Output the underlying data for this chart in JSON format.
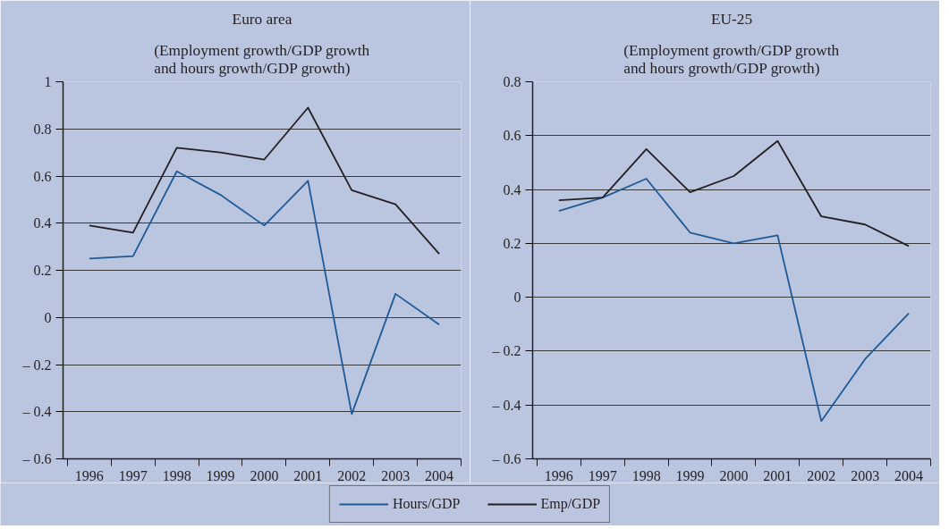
{
  "chart_data": [
    {
      "type": "line",
      "title": "Euro area",
      "subtitle": "(Employment growth/GDP growth\nand hours growth/GDP growth)",
      "categories": [
        "1996",
        "1997",
        "1998",
        "1999",
        "2000",
        "2001",
        "2002",
        "2003",
        "2004"
      ],
      "ylim": [
        -0.6,
        1
      ],
      "yticks": [
        {
          "value": -0.6,
          "label": "– 0.6"
        },
        {
          "value": -0.4,
          "label": "– 0.4"
        },
        {
          "value": -0.2,
          "label": "– 0.2"
        },
        0,
        0.2,
        0.4,
        0.6,
        0.8,
        1
      ],
      "grid": "y",
      "legend": "bottom",
      "series": [
        {
          "name": "Hours/GDP",
          "color": "#1f5a96",
          "values": [
            0.25,
            0.26,
            0.62,
            0.52,
            0.39,
            0.58,
            -0.41,
            0.1,
            -0.03
          ]
        },
        {
          "name": "Emp/GDP",
          "color": "#231f20",
          "values": [
            0.39,
            0.36,
            0.72,
            0.7,
            0.67,
            0.89,
            0.54,
            0.48,
            0.27
          ]
        }
      ]
    },
    {
      "type": "line",
      "title": "EU-25",
      "subtitle": "(Employment growth/GDP growth\nand hours growth/GDP growth)",
      "categories": [
        "1996",
        "1997",
        "1998",
        "1999",
        "2000",
        "2001",
        "2002",
        "2003",
        "2004"
      ],
      "ylim": [
        -0.6,
        0.8
      ],
      "yticks": [
        {
          "value": -0.6,
          "label": "– 0.6"
        },
        {
          "value": -0.4,
          "label": "– 0.4"
        },
        {
          "value": -0.2,
          "label": "– 0.2"
        },
        0,
        0.2,
        0.4,
        0.6,
        0.8
      ],
      "grid": "y",
      "legend": "bottom",
      "series": [
        {
          "name": "Hours/GDP",
          "color": "#1f5a96",
          "values": [
            0.32,
            0.37,
            0.44,
            0.24,
            0.2,
            0.23,
            -0.46,
            -0.23,
            -0.06
          ]
        },
        {
          "name": "Emp/GDP",
          "color": "#231f20",
          "values": [
            0.36,
            0.37,
            0.55,
            0.39,
            0.45,
            0.58,
            0.3,
            0.27,
            0.19
          ]
        }
      ]
    }
  ]
}
